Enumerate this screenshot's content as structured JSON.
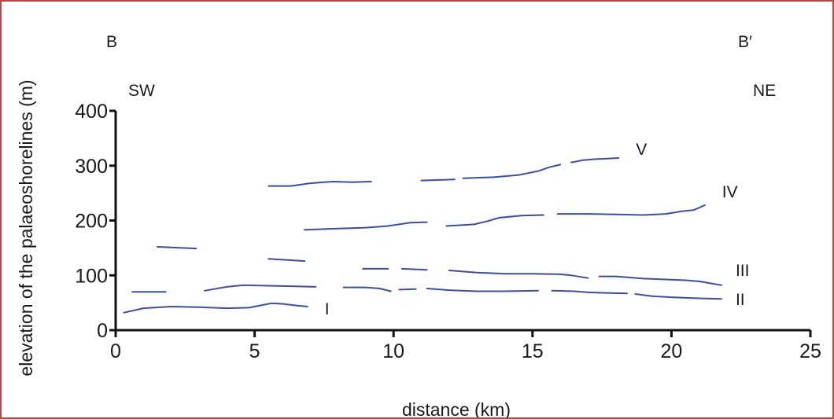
{
  "chart_data": {
    "type": "line",
    "title": "",
    "xlabel": "distance (km)",
    "ylabel": "elevation of the palaeoshorelines (m)",
    "xlim": [
      0,
      25
    ],
    "ylim": [
      0,
      400
    ],
    "x_ticks": [
      "0",
      "5",
      "10",
      "15",
      "20",
      "25"
    ],
    "y_ticks": [
      "0",
      "100",
      "200",
      "300",
      "400"
    ],
    "corner_labels": {
      "top_left": "B",
      "top_right": "B′",
      "left_direction": "SW",
      "right_direction": "NE"
    },
    "grid": false,
    "line_color": "#3b4fa0",
    "series": [
      {
        "name": "I",
        "segments": [
          [
            [
              0.3,
              32
            ],
            [
              1.0,
              40
            ],
            [
              2.0,
              43
            ],
            [
              3.0,
              42
            ],
            [
              4.0,
              40
            ],
            [
              4.8,
              41
            ],
            [
              5.2,
              45
            ],
            [
              5.6,
              49
            ],
            [
              6.0,
              48
            ],
            [
              6.5,
              45
            ],
            [
              6.9,
              43
            ]
          ]
        ]
      },
      {
        "name": "II",
        "segments": [
          [
            [
              0.6,
              70
            ],
            [
              1.8,
              70
            ]
          ],
          [
            [
              3.2,
              72
            ],
            [
              4.0,
              79
            ],
            [
              4.6,
              82
            ],
            [
              5.5,
              81
            ],
            [
              6.5,
              80
            ],
            [
              7.2,
              79
            ]
          ],
          [
            [
              8.2,
              78
            ],
            [
              9.0,
              78
            ],
            [
              9.5,
              76
            ],
            [
              9.9,
              71
            ]
          ],
          [
            [
              10.2,
              74
            ],
            [
              10.8,
              75
            ]
          ],
          [
            [
              11.2,
              76
            ],
            [
              12.0,
              73
            ],
            [
              13.0,
              71
            ],
            [
              14.0,
              71
            ],
            [
              15.2,
              72
            ]
          ],
          [
            [
              15.7,
              72
            ],
            [
              16.5,
              71
            ],
            [
              17.0,
              69
            ],
            [
              18.4,
              67
            ]
          ],
          [
            [
              18.7,
              66
            ],
            [
              19.3,
              62
            ],
            [
              20.0,
              60
            ],
            [
              21.0,
              58
            ],
            [
              21.8,
              57
            ]
          ]
        ]
      },
      {
        "name": "III",
        "segments": [
          [
            [
              1.5,
              152
            ],
            [
              2.9,
              149
            ]
          ],
          [
            [
              5.5,
              130
            ],
            [
              6.8,
              126
            ]
          ],
          [
            [
              8.9,
              112
            ],
            [
              9.8,
              112
            ]
          ],
          [
            [
              10.3,
              112
            ],
            [
              11.2,
              110
            ]
          ],
          [
            [
              12.0,
              109
            ],
            [
              13.0,
              105
            ],
            [
              14.0,
              103
            ],
            [
              15.0,
              103
            ],
            [
              16.0,
              102
            ],
            [
              16.4,
              100
            ],
            [
              17.0,
              95
            ]
          ],
          [
            [
              17.4,
              98
            ],
            [
              18.0,
              98
            ],
            [
              19.0,
              94
            ],
            [
              20.5,
              91
            ],
            [
              21.0,
              89
            ],
            [
              21.8,
              82
            ]
          ]
        ]
      },
      {
        "name": "IV",
        "segments": [
          [
            [
              6.8,
              183
            ],
            [
              7.8,
              185
            ],
            [
              9.0,
              187
            ],
            [
              9.8,
              190
            ],
            [
              10.6,
              196
            ],
            [
              11.2,
              197
            ]
          ],
          [
            [
              11.9,
              190
            ],
            [
              12.9,
              193
            ],
            [
              13.4,
              199
            ],
            [
              13.8,
              205
            ],
            [
              14.6,
              209
            ],
            [
              15.4,
              210
            ]
          ],
          [
            [
              15.9,
              212
            ],
            [
              17.0,
              212
            ],
            [
              18.0,
              211
            ],
            [
              19.0,
              210
            ],
            [
              19.8,
              212
            ],
            [
              20.4,
              217
            ],
            [
              20.8,
              219
            ],
            [
              21.2,
              228
            ]
          ]
        ]
      },
      {
        "name": "V",
        "segments": [
          [
            [
              5.5,
              263
            ],
            [
              6.3,
              263
            ],
            [
              7.0,
              268
            ],
            [
              7.8,
              271
            ],
            [
              8.5,
              270
            ],
            [
              9.2,
              271
            ]
          ],
          [
            [
              11.0,
              273
            ],
            [
              12.2,
              275
            ]
          ],
          [
            [
              12.5,
              277
            ],
            [
              13.6,
              279
            ],
            [
              14.5,
              283
            ],
            [
              15.2,
              290
            ],
            [
              15.6,
              297
            ],
            [
              16.0,
              302
            ]
          ],
          [
            [
              16.4,
              306
            ],
            [
              16.8,
              310
            ],
            [
              17.3,
              312
            ],
            [
              18.1,
              314
            ]
          ]
        ]
      }
    ]
  }
}
